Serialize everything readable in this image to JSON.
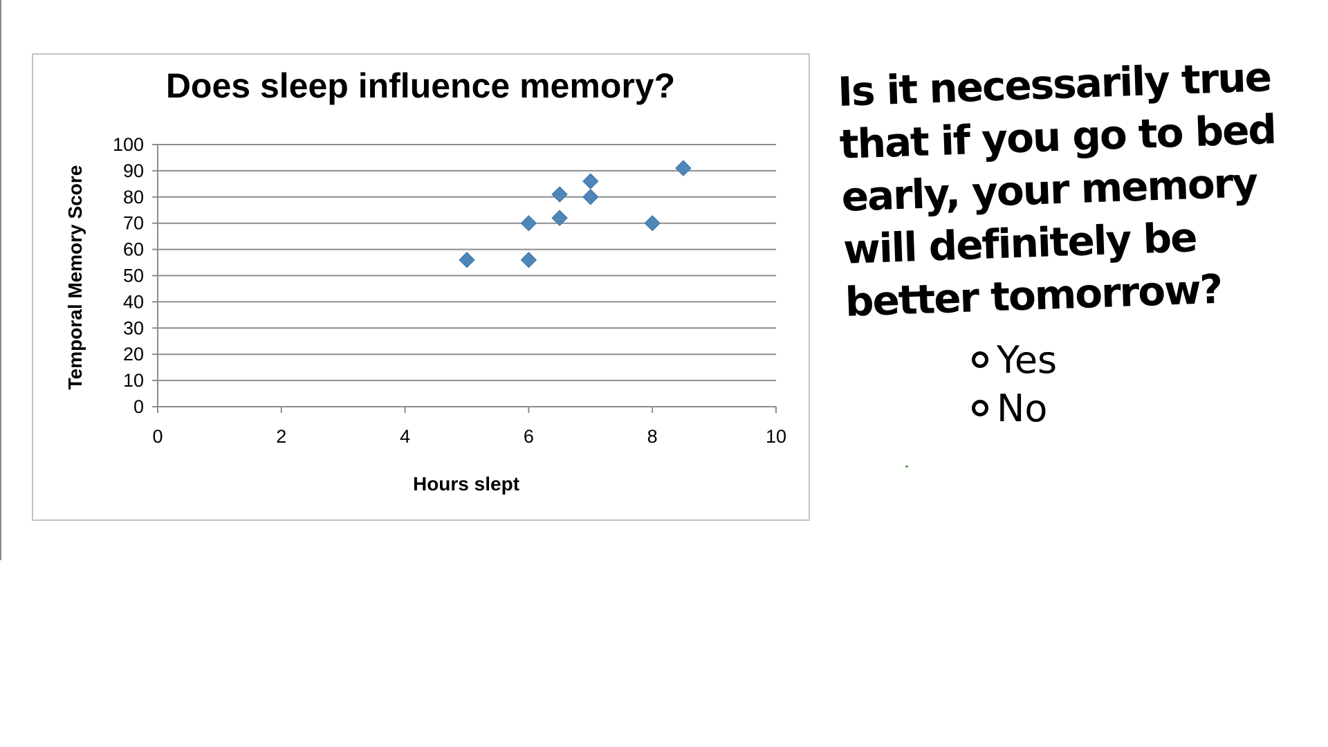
{
  "chart_data": {
    "type": "scatter",
    "title": "Does sleep influence memory?",
    "xlabel": "Hours slept",
    "ylabel": "Temporal Memory Score",
    "xlim": [
      0,
      10
    ],
    "ylim": [
      0,
      100
    ],
    "x_ticks": [
      "0",
      "2",
      "4",
      "6",
      "8",
      "10"
    ],
    "y_ticks": [
      "0",
      "10",
      "20",
      "30",
      "40",
      "50",
      "60",
      "70",
      "80",
      "90",
      "100"
    ],
    "grid": true,
    "legend": "none",
    "marker": "diamond",
    "color": "#4f86b8",
    "points": [
      {
        "x": 5,
        "y": 56
      },
      {
        "x": 6,
        "y": 56
      },
      {
        "x": 6,
        "y": 70
      },
      {
        "x": 6.5,
        "y": 81
      },
      {
        "x": 6.5,
        "y": 72
      },
      {
        "x": 7,
        "y": 86
      },
      {
        "x": 7,
        "y": 80
      },
      {
        "x": 8,
        "y": 70
      },
      {
        "x": 8.5,
        "y": 91
      }
    ]
  },
  "question": {
    "text": "Is it necessarily true that if you go to bed early, your memory will definitely be better tomorrow?",
    "options": [
      "Yes",
      "No"
    ]
  }
}
